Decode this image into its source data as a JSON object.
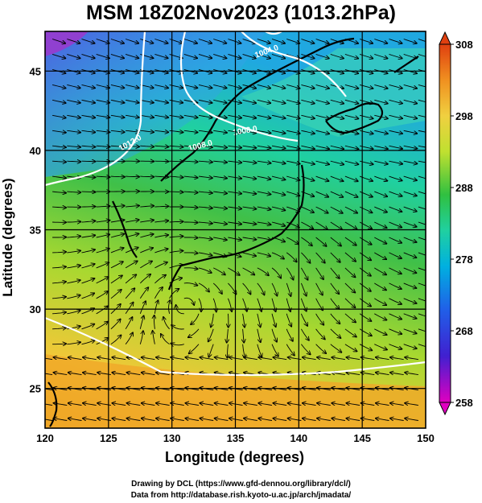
{
  "title": "MSM 18Z02Nov2023 (1013.2hPa)",
  "axes": {
    "xlabel": "Longitude (degrees)",
    "ylabel": "Latitude  (degrees)",
    "xticks": [
      "120",
      "125",
      "130",
      "135",
      "140",
      "145",
      "150"
    ],
    "yticks": [
      "25",
      "30",
      "35",
      "40",
      "45"
    ],
    "xlim": [
      120,
      150
    ],
    "ylim": [
      22.5,
      47.5
    ]
  },
  "colorbar": {
    "ticks": [
      "308",
      "298",
      "288",
      "278",
      "268",
      "258"
    ],
    "range": [
      258,
      308
    ],
    "colors": [
      "#c000c0",
      "#3030e0",
      "#00a0e0",
      "#00d0a0",
      "#40c040",
      "#a0d830",
      "#f0e040",
      "#f0a020",
      "#e05010"
    ]
  },
  "contours": {
    "labels": [
      "1004.0",
      "1008.0",
      "1012.0",
      "1008.0"
    ]
  },
  "credits": {
    "line1": "Drawing by DCL (https://www.gfd-dennou.org/library/dcl/)",
    "line2": "Data from http://database.rish.kyoto-u.ac.jp/arch/jmadata/"
  }
}
